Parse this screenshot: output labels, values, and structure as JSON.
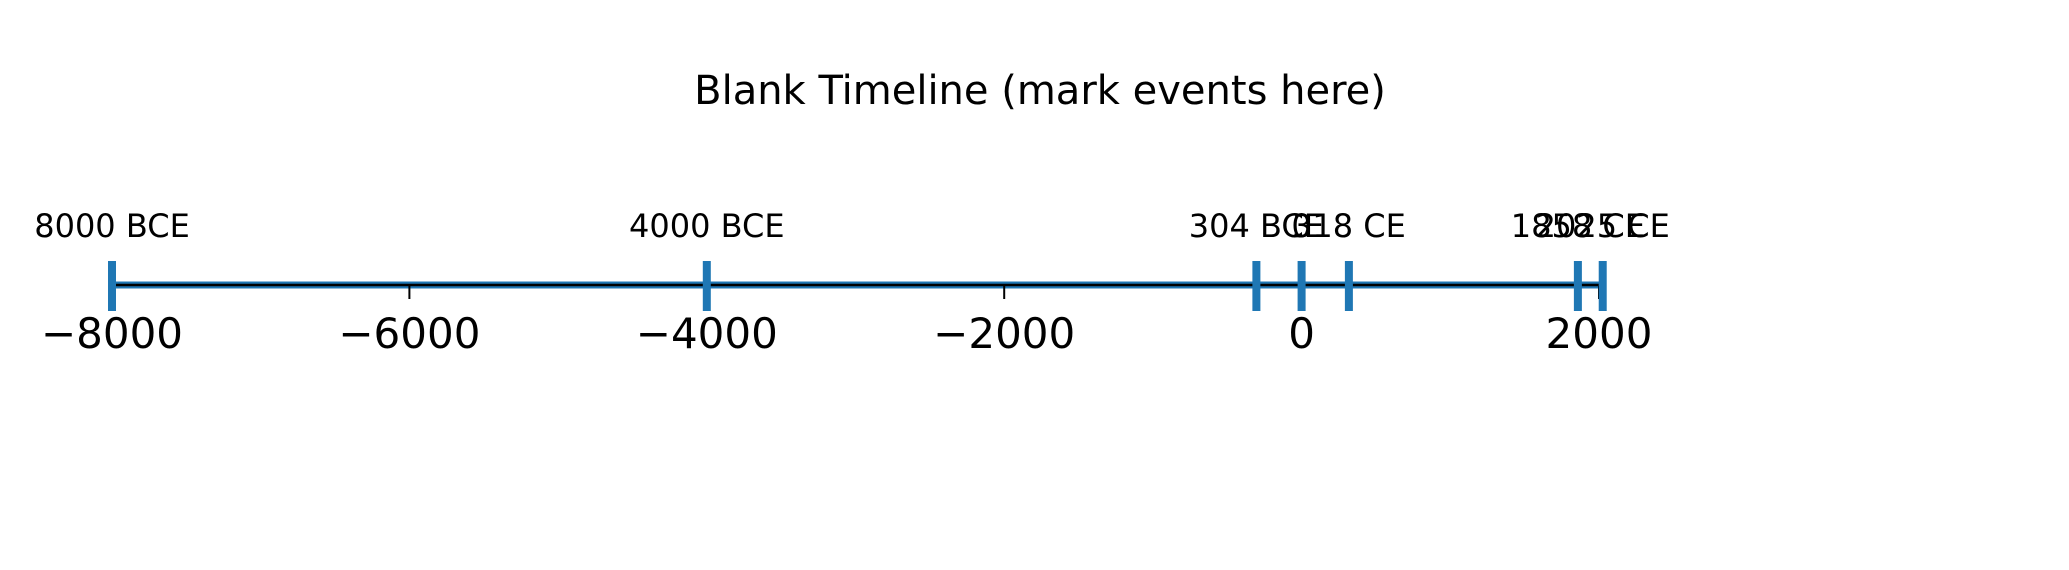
{
  "chart_data": {
    "type": "timeline",
    "title": "Blank Timeline (mark events here)",
    "xlabel": "",
    "ylabel": "",
    "xlim": [
      -8050,
      2050
    ],
    "x_ticks": [
      -8000,
      -6000,
      -4000,
      -2000,
      0,
      2000
    ],
    "x_tick_labels": [
      "−8000",
      "−6000",
      "−4000",
      "−2000",
      "0",
      "2000"
    ],
    "grid": false,
    "events": [
      {
        "x": -8000,
        "label": "8000 BCE"
      },
      {
        "x": -4000,
        "label": "4000 BCE"
      },
      {
        "x": -304,
        "label": "304 BCE"
      },
      {
        "x": 0,
        "label": "0"
      },
      {
        "x": 318,
        "label": "318 CE"
      },
      {
        "x": 1858,
        "label": "1858 CE"
      },
      {
        "x": 2025,
        "label": "2025 CE"
      }
    ],
    "colors": {
      "event_marker": "#1f77b4",
      "axis_line": "#000000",
      "timeline_band": "#1f77b4"
    }
  }
}
